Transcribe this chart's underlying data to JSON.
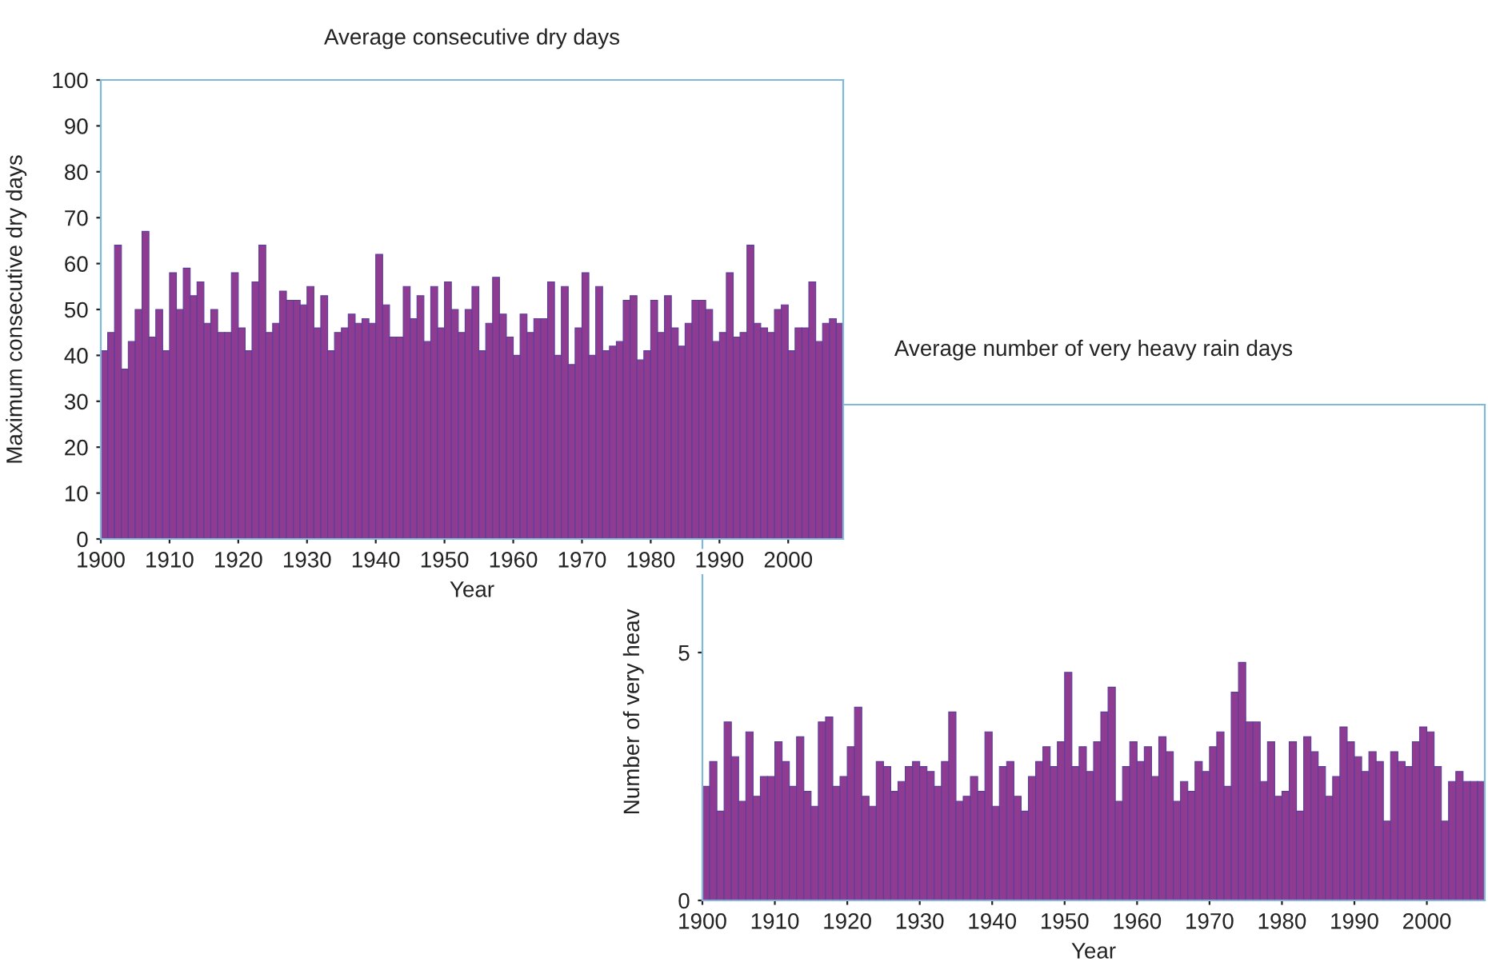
{
  "chart_data": [
    {
      "type": "bar",
      "title": "Average consecutive dry days",
      "xlabel": "Year",
      "ylabel": "Maximum consecutive dry days",
      "color": "#8e3b91",
      "x": [
        1900,
        1901,
        1902,
        1903,
        1904,
        1905,
        1906,
        1907,
        1908,
        1909,
        1910,
        1911,
        1912,
        1913,
        1914,
        1915,
        1916,
        1917,
        1918,
        1919,
        1920,
        1921,
        1922,
        1923,
        1924,
        1925,
        1926,
        1927,
        1928,
        1929,
        1930,
        1931,
        1932,
        1933,
        1934,
        1935,
        1936,
        1937,
        1938,
        1939,
        1940,
        1941,
        1942,
        1943,
        1944,
        1945,
        1946,
        1947,
        1948,
        1949,
        1950,
        1951,
        1952,
        1953,
        1954,
        1955,
        1956,
        1957,
        1958,
        1959,
        1960,
        1961,
        1962,
        1963,
        1964,
        1965,
        1966,
        1967,
        1968,
        1969,
        1970,
        1971,
        1972,
        1973,
        1974,
        1975,
        1976,
        1977,
        1978,
        1979,
        1980,
        1981,
        1982,
        1983,
        1984,
        1985,
        1986,
        1987,
        1988,
        1989,
        1990,
        1991,
        1992,
        1993,
        1994,
        1995,
        1996,
        1997,
        1998,
        1999,
        2000,
        2001,
        2002,
        2003,
        2004,
        2005,
        2006,
        2007
      ],
      "values": [
        41,
        45,
        64,
        37,
        43,
        50,
        67,
        44,
        50,
        41,
        58,
        50,
        59,
        53,
        56,
        47,
        50,
        45,
        45,
        58,
        46,
        41,
        56,
        64,
        45,
        47,
        54,
        52,
        52,
        51,
        55,
        46,
        53,
        41,
        45,
        46,
        49,
        47,
        48,
        47,
        62,
        51,
        44,
        44,
        55,
        48,
        53,
        43,
        55,
        46,
        56,
        50,
        45,
        50,
        55,
        41,
        47,
        57,
        49,
        44,
        40,
        49,
        45,
        48,
        48,
        56,
        40,
        55,
        38,
        46,
        58,
        40,
        55,
        41,
        42,
        43,
        52,
        53,
        39,
        41,
        52,
        45,
        53,
        46,
        42,
        47,
        52,
        52,
        50,
        43,
        45,
        58,
        44,
        45,
        64,
        47,
        46,
        45,
        50,
        51,
        41,
        46,
        46,
        56,
        43,
        47,
        48,
        47
      ],
      "xlim": [
        1900,
        2008
      ],
      "ylim": [
        0,
        100
      ],
      "xticks": [
        1900,
        1910,
        1920,
        1930,
        1940,
        1950,
        1960,
        1970,
        1980,
        1990,
        2000
      ],
      "yticks": [
        0,
        10,
        20,
        30,
        40,
        50,
        60,
        70,
        80,
        90,
        100
      ]
    },
    {
      "type": "bar",
      "title": "Average number of very heavy rain days",
      "xlabel": "Year",
      "ylabel": "Number of very heav",
      "color": "#8e3b91",
      "x": [
        1900,
        1901,
        1902,
        1903,
        1904,
        1905,
        1906,
        1907,
        1908,
        1909,
        1910,
        1911,
        1912,
        1913,
        1914,
        1915,
        1916,
        1917,
        1918,
        1919,
        1920,
        1921,
        1922,
        1923,
        1924,
        1925,
        1926,
        1927,
        1928,
        1929,
        1930,
        1931,
        1932,
        1933,
        1934,
        1935,
        1936,
        1937,
        1938,
        1939,
        1940,
        1941,
        1942,
        1943,
        1944,
        1945,
        1946,
        1947,
        1948,
        1949,
        1950,
        1951,
        1952,
        1953,
        1954,
        1955,
        1956,
        1957,
        1958,
        1959,
        1960,
        1961,
        1962,
        1963,
        1964,
        1965,
        1966,
        1967,
        1968,
        1969,
        1970,
        1971,
        1972,
        1973,
        1974,
        1975,
        1976,
        1977,
        1978,
        1979,
        1980,
        1981,
        1982,
        1983,
        1984,
        1985,
        1986,
        1987,
        1988,
        1989,
        1990,
        1991,
        1992,
        1993,
        1994,
        1995,
        1996,
        1997,
        1998,
        1999,
        2000,
        2001,
        2002,
        2003,
        2004,
        2005,
        2006,
        2007
      ],
      "values": [
        2.3,
        2.8,
        1.8,
        3.6,
        2.9,
        2.0,
        3.4,
        2.1,
        2.5,
        2.5,
        3.2,
        2.8,
        2.3,
        3.3,
        2.2,
        1.9,
        3.6,
        3.7,
        2.3,
        2.5,
        3.1,
        3.9,
        2.1,
        1.9,
        2.8,
        2.7,
        2.2,
        2.4,
        2.7,
        2.8,
        2.7,
        2.6,
        2.3,
        2.8,
        3.8,
        2.0,
        2.1,
        2.5,
        2.2,
        3.4,
        1.9,
        2.7,
        2.8,
        2.1,
        1.8,
        2.5,
        2.8,
        3.1,
        2.7,
        3.2,
        4.6,
        2.7,
        3.1,
        2.6,
        3.2,
        3.8,
        4.3,
        2.0,
        2.7,
        3.2,
        2.8,
        3.1,
        2.5,
        3.3,
        3.0,
        2.0,
        2.4,
        2.2,
        2.8,
        2.6,
        3.1,
        3.4,
        2.3,
        4.2,
        4.8,
        3.6,
        3.6,
        2.4,
        3.2,
        2.1,
        2.2,
        3.2,
        1.8,
        3.3,
        3.0,
        2.7,
        2.1,
        2.5,
        3.5,
        3.2,
        2.9,
        2.6,
        3.0,
        2.8,
        1.6,
        3.0,
        2.8,
        2.7,
        3.2,
        3.5,
        3.4,
        2.7,
        1.6,
        2.4,
        2.6,
        2.4,
        2.4,
        2.4
      ],
      "xlim": [
        1900,
        2008
      ],
      "ylim": [
        0,
        10
      ],
      "xticks": [
        1900,
        1910,
        1920,
        1930,
        1940,
        1950,
        1960,
        1970,
        1980,
        1990,
        2000
      ],
      "yticks": [
        0,
        5
      ]
    }
  ]
}
